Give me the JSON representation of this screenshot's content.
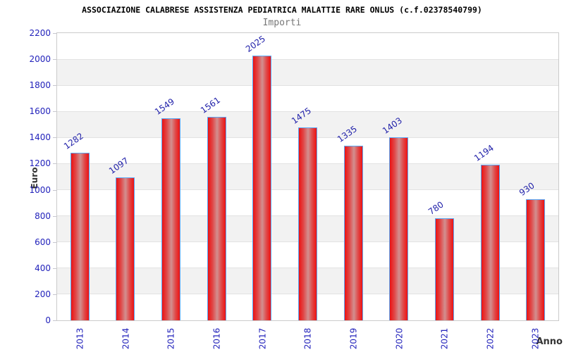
{
  "title": "ASSOCIAZIONE CALABRESE ASSISTENZA PEDIATRICA MALATTIE RARE ONLUS (c.f.02378540799)",
  "subtitle": "Importi",
  "chart_data": {
    "type": "bar",
    "title": "ASSOCIAZIONE CALABRESE ASSISTENZA PEDIATRICA MALATTIE RARE ONLUS (c.f.02378540799)",
    "subtitle": "Importi",
    "categories": [
      "2013",
      "2014",
      "2015",
      "2016",
      "2017",
      "2018",
      "2019",
      "2020",
      "2021",
      "2022",
      "2023"
    ],
    "values": [
      1282,
      1097,
      1549,
      1561,
      2025,
      1475,
      1335,
      1403,
      780,
      1194,
      930
    ],
    "xlabel": "Anno",
    "ylabel": "Euro",
    "ylim": [
      0,
      2200
    ],
    "ytick_step": 200,
    "yticks": [
      0,
      200,
      400,
      600,
      800,
      1000,
      1200,
      1400,
      1600,
      1800,
      2000,
      2200
    ],
    "grid": "horizontal gridlines with alternating gray/white bands every 200",
    "legend": "none",
    "value_labels": "shown above bars, rotated"
  },
  "colors": {
    "label_blue": "#2222bb",
    "value_label_blue": "#2222aa",
    "bar_red": "#ec1212",
    "bar_red_mid": "#e04848",
    "bar_highlight": "#d29090",
    "bar_border": "#5aa7f5",
    "band_gray": "#f2f2f2",
    "grid_line": "#e2e2e2",
    "plot_border": "#cbcbcb",
    "axis_title": "#333333",
    "title_color": "#000000",
    "subtitle_color": "#777777"
  }
}
